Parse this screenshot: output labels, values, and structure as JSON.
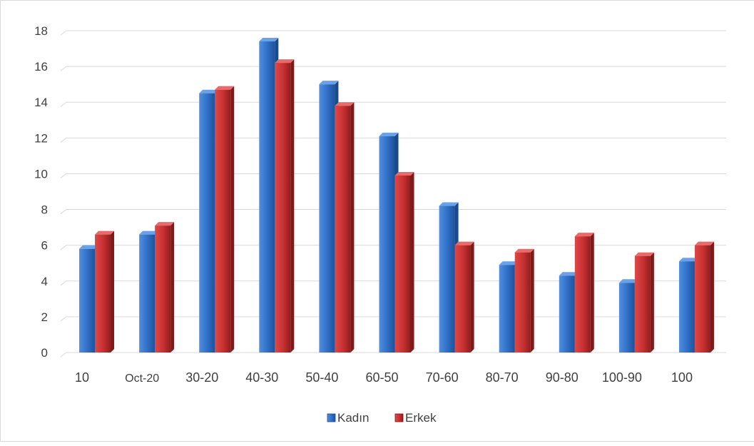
{
  "chart_data": {
    "type": "bar",
    "title": "",
    "xlabel": "",
    "ylabel": "",
    "ylim": [
      0,
      18
    ],
    "yticks": [
      0,
      2,
      4,
      6,
      8,
      10,
      12,
      14,
      16,
      18
    ],
    "grid": true,
    "legend_position": "bottom",
    "categories": [
      "10",
      "Oct-20",
      "30-20",
      "40-30",
      "50-40",
      "60-50",
      "70-60",
      "80-70",
      "90-80",
      "100-90",
      "100"
    ],
    "series": [
      {
        "name": "Kadın",
        "color": "#2e6fc4",
        "values": [
          5.8,
          6.6,
          14.5,
          17.4,
          15.0,
          12.1,
          8.2,
          4.9,
          4.3,
          3.9,
          5.1
        ]
      },
      {
        "name": "Erkek",
        "color": "#c83232",
        "values": [
          6.6,
          7.1,
          14.7,
          16.2,
          13.8,
          9.9,
          6.0,
          5.6,
          6.5,
          5.4,
          6.0
        ]
      }
    ]
  }
}
